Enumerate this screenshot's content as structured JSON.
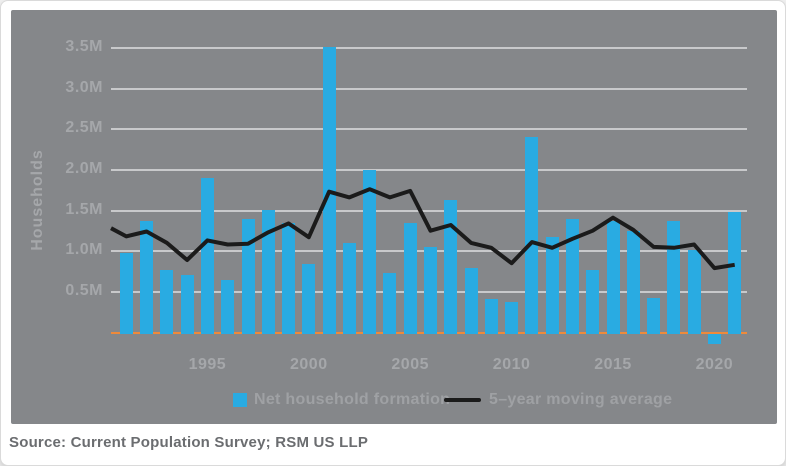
{
  "card": {
    "source_text": "Source: Current Population Survey; RSM US LLP"
  },
  "legend": {
    "bar_label": "Net household formation",
    "line_label": "5–year moving average"
  },
  "colors": {
    "panel_background": "#85878A",
    "bar": "#29ABE2",
    "moving_average_line": "#1B1B1B",
    "gridline": "#C8C9CB",
    "zero_baseline": "#EE8A3B",
    "axis_text": "#A5A7AA",
    "legend_text": "#9FA1A4",
    "source_text": "#6B6D70"
  },
  "chart_data": {
    "type": "bar",
    "title": "",
    "xlabel": "",
    "ylabel": "Households",
    "unit": "millions of households",
    "grid": true,
    "legend_position": "bottom",
    "ylim": [
      -0.25,
      3.75
    ],
    "categories": [
      1991,
      1992,
      1993,
      1994,
      1995,
      1996,
      1997,
      1998,
      1999,
      2000,
      2001,
      2002,
      2003,
      2004,
      2005,
      2006,
      2007,
      2008,
      2009,
      2010,
      2011,
      2012,
      2013,
      2014,
      2015,
      2016,
      2017,
      2018,
      2019,
      2020,
      2021
    ],
    "series": [
      {
        "name": "Net household formation",
        "type": "bar",
        "color": "#29ABE2",
        "values": [
          0.97,
          1.36,
          0.76,
          0.69,
          1.89,
          0.63,
          1.39,
          1.5,
          1.34,
          0.83,
          3.5,
          1.09,
          1.99,
          0.72,
          1.34,
          1.04,
          1.62,
          0.78,
          0.4,
          0.36,
          2.39,
          1.16,
          1.38,
          0.76,
          1.36,
          1.24,
          0.41,
          1.36,
          1.0,
          -0.12,
          1.47
        ]
      },
      {
        "name": "5-year moving average",
        "type": "line",
        "color": "#1B1B1B",
        "edge_start_value": 1.27,
        "values": [
          1.17,
          1.23,
          1.09,
          0.88,
          1.12,
          1.07,
          1.08,
          1.22,
          1.33,
          1.16,
          1.72,
          1.65,
          1.75,
          1.65,
          1.73,
          1.24,
          1.31,
          1.09,
          1.03,
          0.84,
          1.1,
          1.03,
          1.14,
          1.24,
          1.4,
          1.25,
          1.04,
          1.03,
          1.07,
          0.78,
          0.82
        ]
      }
    ],
    "y_ticks": [
      {
        "label": "3.5M",
        "value": 3.5
      },
      {
        "label": "3.0M",
        "value": 3.0
      },
      {
        "label": "2.5M",
        "value": 2.5
      },
      {
        "label": "2.0M",
        "value": 2.0
      },
      {
        "label": "1.5M",
        "value": 1.5
      },
      {
        "label": "1.0M",
        "value": 1.0
      },
      {
        "label": "0.5M",
        "value": 0.5
      }
    ],
    "x_ticks": [
      {
        "label": "1995",
        "year": 1995
      },
      {
        "label": "2000",
        "year": 2000
      },
      {
        "label": "2005",
        "year": 2005
      },
      {
        "label": "2010",
        "year": 2010
      },
      {
        "label": "2015",
        "year": 2015
      },
      {
        "label": "2020",
        "year": 2020
      }
    ]
  }
}
